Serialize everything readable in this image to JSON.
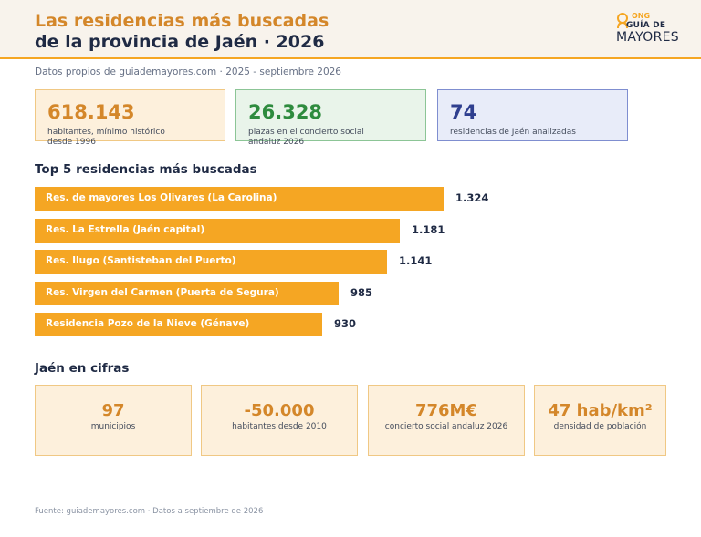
{
  "header": {
    "title_line1": "Las residencias más buscadas",
    "title_line2": "de la provincia de Jaén · 2026",
    "logo": {
      "ong": "ONG",
      "guia": "GUÍA DE",
      "mayores": "MAYORES"
    }
  },
  "subtitle": "Datos propios de guiademayores.com · 2025 - septiembre 2026",
  "stats": [
    {
      "value": "618.143",
      "desc": "habitantes, mínimo histórico desde 1996",
      "color": "#d4872a",
      "bg": "#fdf0dc",
      "border": "#f0c884"
    },
    {
      "value": "26.328",
      "desc": "plazas en el concierto social andaluz 2026",
      "color": "#2e8b3e",
      "bg": "#e9f4ea",
      "border": "#8cc596"
    },
    {
      "value": "74",
      "desc": "residencias de Jaén analizadas",
      "color": "#2f3f8f",
      "bg": "#e8ecf9",
      "border": "#7f8ed0"
    }
  ],
  "chart_title": "Top 5 residencias más buscadas",
  "chart_data": {
    "type": "bar",
    "orientation": "horizontal",
    "title": "Top 5 residencias más buscadas",
    "categories": [
      "Res. de mayores Los Olivares (La Carolina)",
      "Res. La Estrella (Jaén capital)",
      "Res. Ilugo (Santisteban del Puerto)",
      "Res. Virgen del Carmen (Puerta de Segura)",
      "Residencia Pozo de la Nieve (Génave)"
    ],
    "values": [
      1324,
      1181,
      1141,
      985,
      930
    ],
    "value_labels": [
      "1.324",
      "1.181",
      "1.141",
      "985",
      "930"
    ],
    "bar_color": "#f5a623",
    "grid": false,
    "legend": "none"
  },
  "figures_title": "Jaén en cifras",
  "figures": [
    {
      "value": "97",
      "desc": "municipios"
    },
    {
      "value": "-50.000",
      "desc": "habitantes desde 2010"
    },
    {
      "value": "776M€",
      "desc": "concierto social andaluz 2026"
    },
    {
      "value": "47 hab/km²",
      "desc": "densidad de población"
    }
  ],
  "footer": "Fuente: guiademayores.com · Datos a septiembre de 2026"
}
